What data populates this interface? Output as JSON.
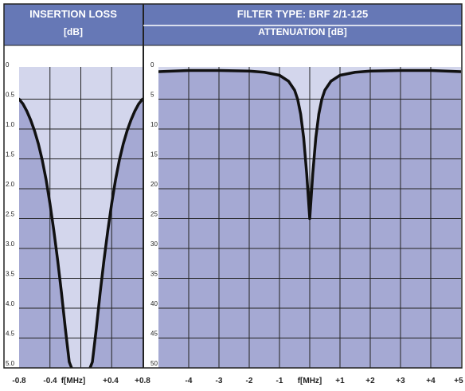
{
  "colors": {
    "header_bg": "#6678b6",
    "plot_fill": "#a5a9d3",
    "passband_fill": "#d3d6ec",
    "grid": "#222222",
    "curve": "#111111",
    "header_text": "#ffffff"
  },
  "chart_data": [
    {
      "type": "line",
      "header_lines": [
        "INSERTION LOSS",
        "[dB]"
      ],
      "xlim": [
        -0.8,
        0.8
      ],
      "ylim": [
        0,
        5.0
      ],
      "y_inverted": true,
      "grid": true,
      "x_tick_labels": [
        "-0.8",
        "-0.4",
        "f[MHz]",
        "+0.4",
        "+0.8"
      ],
      "y_tick_labels": [
        "0",
        "0.5",
        "1.0",
        "1.5",
        "2.0",
        "2.5",
        "3.0",
        "3.5",
        "4.0",
        "4.5",
        "5.0"
      ],
      "series": [
        {
          "x": [
            -0.8,
            -0.75,
            -0.7,
            -0.65,
            -0.6,
            -0.55,
            -0.5,
            -0.45,
            -0.4,
            -0.35,
            -0.3,
            -0.25,
            -0.2,
            -0.15,
            -0.12
          ],
          "y": [
            0.5,
            0.58,
            0.7,
            0.85,
            1.03,
            1.25,
            1.52,
            1.85,
            2.25,
            2.7,
            3.2,
            3.75,
            4.35,
            4.9,
            5.0
          ]
        },
        {
          "x": [
            0.12,
            0.15,
            0.2,
            0.25,
            0.3,
            0.35,
            0.4,
            0.45,
            0.5,
            0.55,
            0.6,
            0.65,
            0.7,
            0.75,
            0.8
          ],
          "y": [
            5.0,
            4.9,
            4.35,
            3.75,
            3.2,
            2.7,
            2.25,
            1.85,
            1.52,
            1.25,
            1.03,
            0.85,
            0.7,
            0.58,
            0.5
          ]
        }
      ]
    },
    {
      "type": "line",
      "header_lines": [
        "FILTER TYPE: BRF 2/1-125",
        "ATTENUATION [dB]"
      ],
      "xlim": [
        -5,
        5
      ],
      "ylim": [
        0,
        50
      ],
      "y_inverted": true,
      "grid": true,
      "x_tick_labels": [
        "-4",
        "-3",
        "-2",
        "-1",
        "f[MHz]",
        "+1",
        "+2",
        "+3",
        "+4",
        "+5"
      ],
      "y_tick_labels": [
        "0",
        "5",
        "10",
        "15",
        "20",
        "25",
        "30",
        "35",
        "40",
        "45",
        "50"
      ],
      "series": [
        {
          "x": [
            -5.0,
            -4.0,
            -3.0,
            -2.0,
            -1.5,
            -1.0,
            -0.7,
            -0.5,
            -0.4,
            -0.3,
            -0.2,
            -0.1,
            0.0,
            0.1,
            0.2,
            0.3,
            0.4,
            0.5,
            0.7,
            1.0,
            1.5,
            2.0,
            3.0,
            4.0,
            5.0
          ],
          "y": [
            0.4,
            0.2,
            0.2,
            0.3,
            0.5,
            1.0,
            2.0,
            3.5,
            5.0,
            7.5,
            11.5,
            17.5,
            25.0,
            17.5,
            11.5,
            7.5,
            5.0,
            3.5,
            2.0,
            1.0,
            0.5,
            0.3,
            0.2,
            0.2,
            0.4
          ]
        }
      ]
    }
  ]
}
